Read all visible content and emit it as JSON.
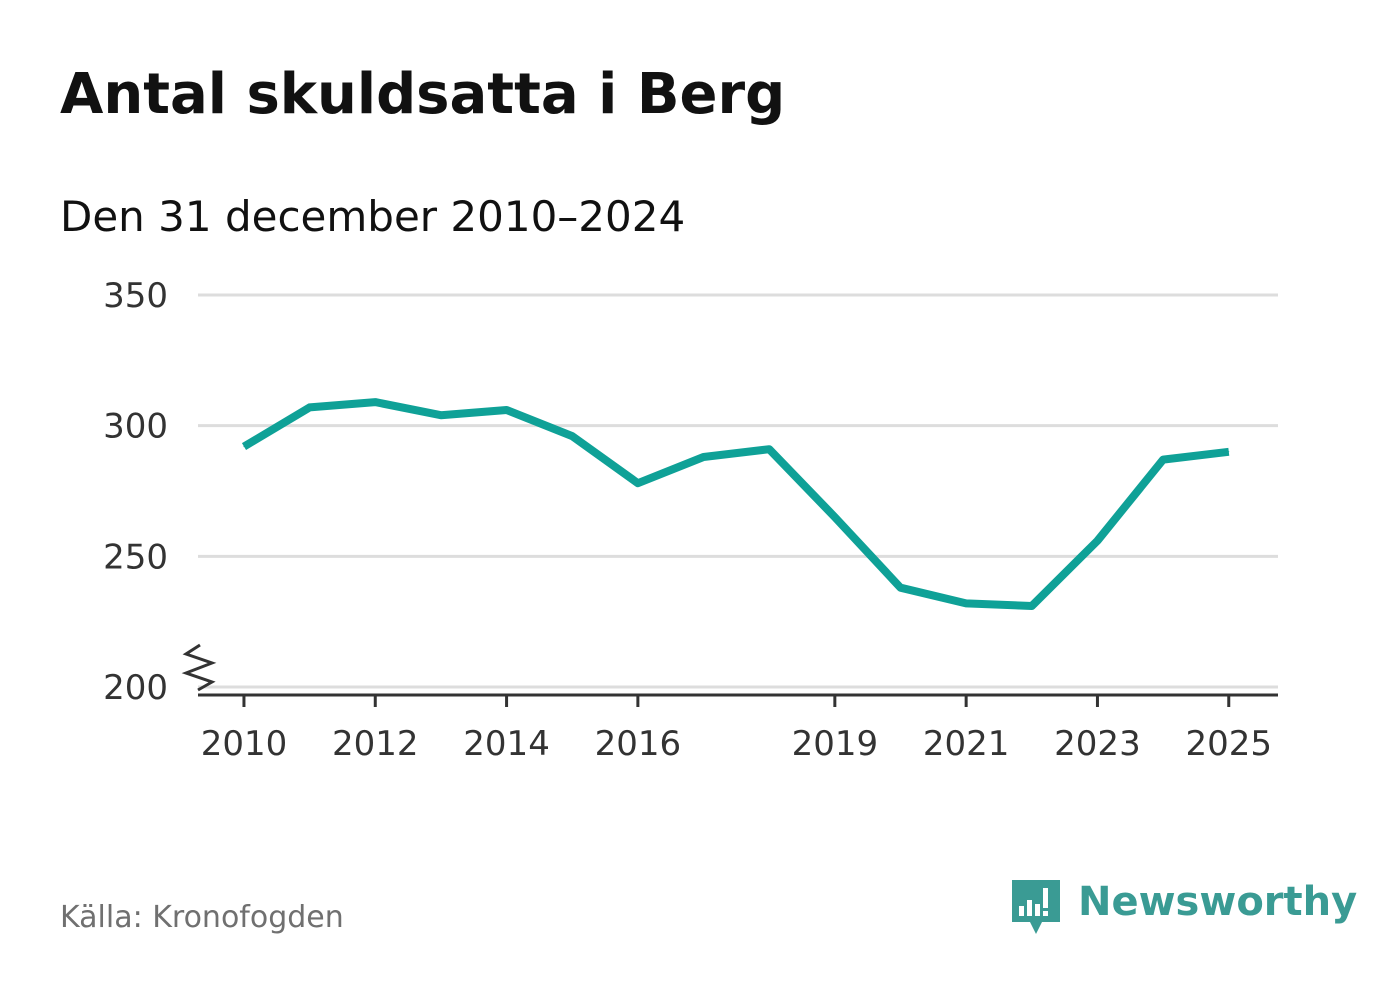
{
  "title": "Antal skuldsatta i Berg",
  "subtitle": "Den 31 december 2010–2024",
  "source": "Källa: Kronofogden",
  "brand": {
    "name": "Newsworthy",
    "logo_icon": "bar-chart-speech-bubble-icon",
    "color": "#3a9b94"
  },
  "colors": {
    "line": "#0fa197",
    "grid": "#dddddd",
    "axis": "#333333"
  },
  "chart_data": {
    "type": "line",
    "title": "Antal skuldsatta i Berg",
    "subtitle": "Den 31 december 2010–2024",
    "xlabel": "",
    "ylabel": "",
    "x_ticks": [
      "2010",
      "2012",
      "2014",
      "2016",
      "2019",
      "2021",
      "2023",
      "2025"
    ],
    "y_ticks": [
      "200",
      "250",
      "300",
      "350"
    ],
    "y_axis_break": true,
    "grid": true,
    "ylim": [
      200,
      350
    ],
    "xlim": [
      2009.3,
      2025.75
    ],
    "series": [
      {
        "name": "Antal skuldsatta",
        "x": [
          2010,
          2011,
          2012,
          2013,
          2014,
          2015,
          2016,
          2017,
          2018,
          2019,
          2020,
          2021,
          2022,
          2023,
          2024,
          2025
        ],
        "values": [
          292,
          307,
          309,
          304,
          306,
          296,
          278,
          288,
          291,
          265,
          238,
          232,
          231,
          256,
          287,
          290
        ]
      }
    ]
  }
}
